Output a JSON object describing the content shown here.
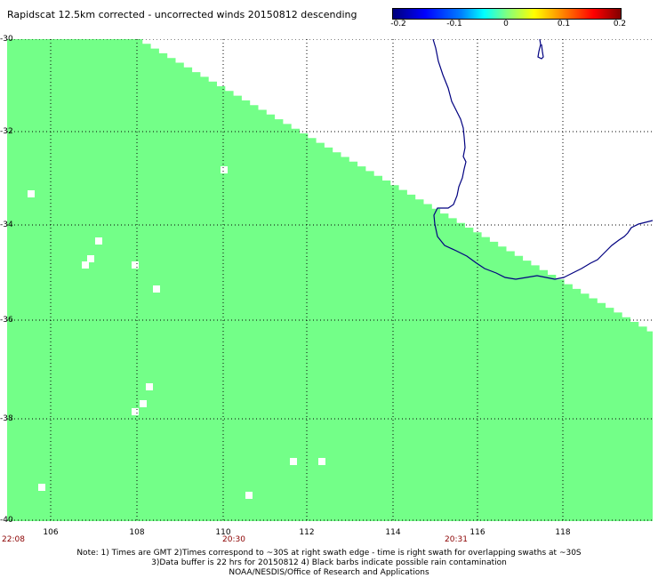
{
  "title": "Rapidscat 12.5km corrected - uncorrected winds 20150812 descending",
  "colorbar": {
    "ticks": [
      "-0.2",
      "-0.1",
      "0",
      "0.1",
      "0.2"
    ],
    "colors": [
      "#00007a",
      "#0000ff",
      "#00ffff",
      "#80ff80",
      "#ffff00",
      "#ff0000",
      "#800000"
    ]
  },
  "map": {
    "lat_range": [
      -40,
      -30
    ],
    "lon_range": [
      105,
      120
    ],
    "lat_ticks": [
      "-30",
      "-32",
      "-34",
      "-36",
      "-38",
      "-40"
    ],
    "lon_ticks": [
      "106",
      "108",
      "110",
      "112",
      "114",
      "116",
      "118"
    ],
    "swath_color": "#73ff88",
    "coast_color": "#000080",
    "grid": "dotted",
    "times": [
      {
        "label": "22:08",
        "lon": 105
      },
      {
        "label": "20:30",
        "lon": 110.3
      },
      {
        "label": "20:31",
        "lon": 115.4
      }
    ]
  },
  "notes": [
    "Note: 1) Times are GMT 2)Times correspond to ~30S at right swath edge - time is right swath for overlapping swaths at ~30S",
    "3)Data buffer is 22 hrs for 20150812 4) Black barbs indicate possible rain contamination",
    "NOAA/NESDIS/Office of Research and Applications"
  ]
}
